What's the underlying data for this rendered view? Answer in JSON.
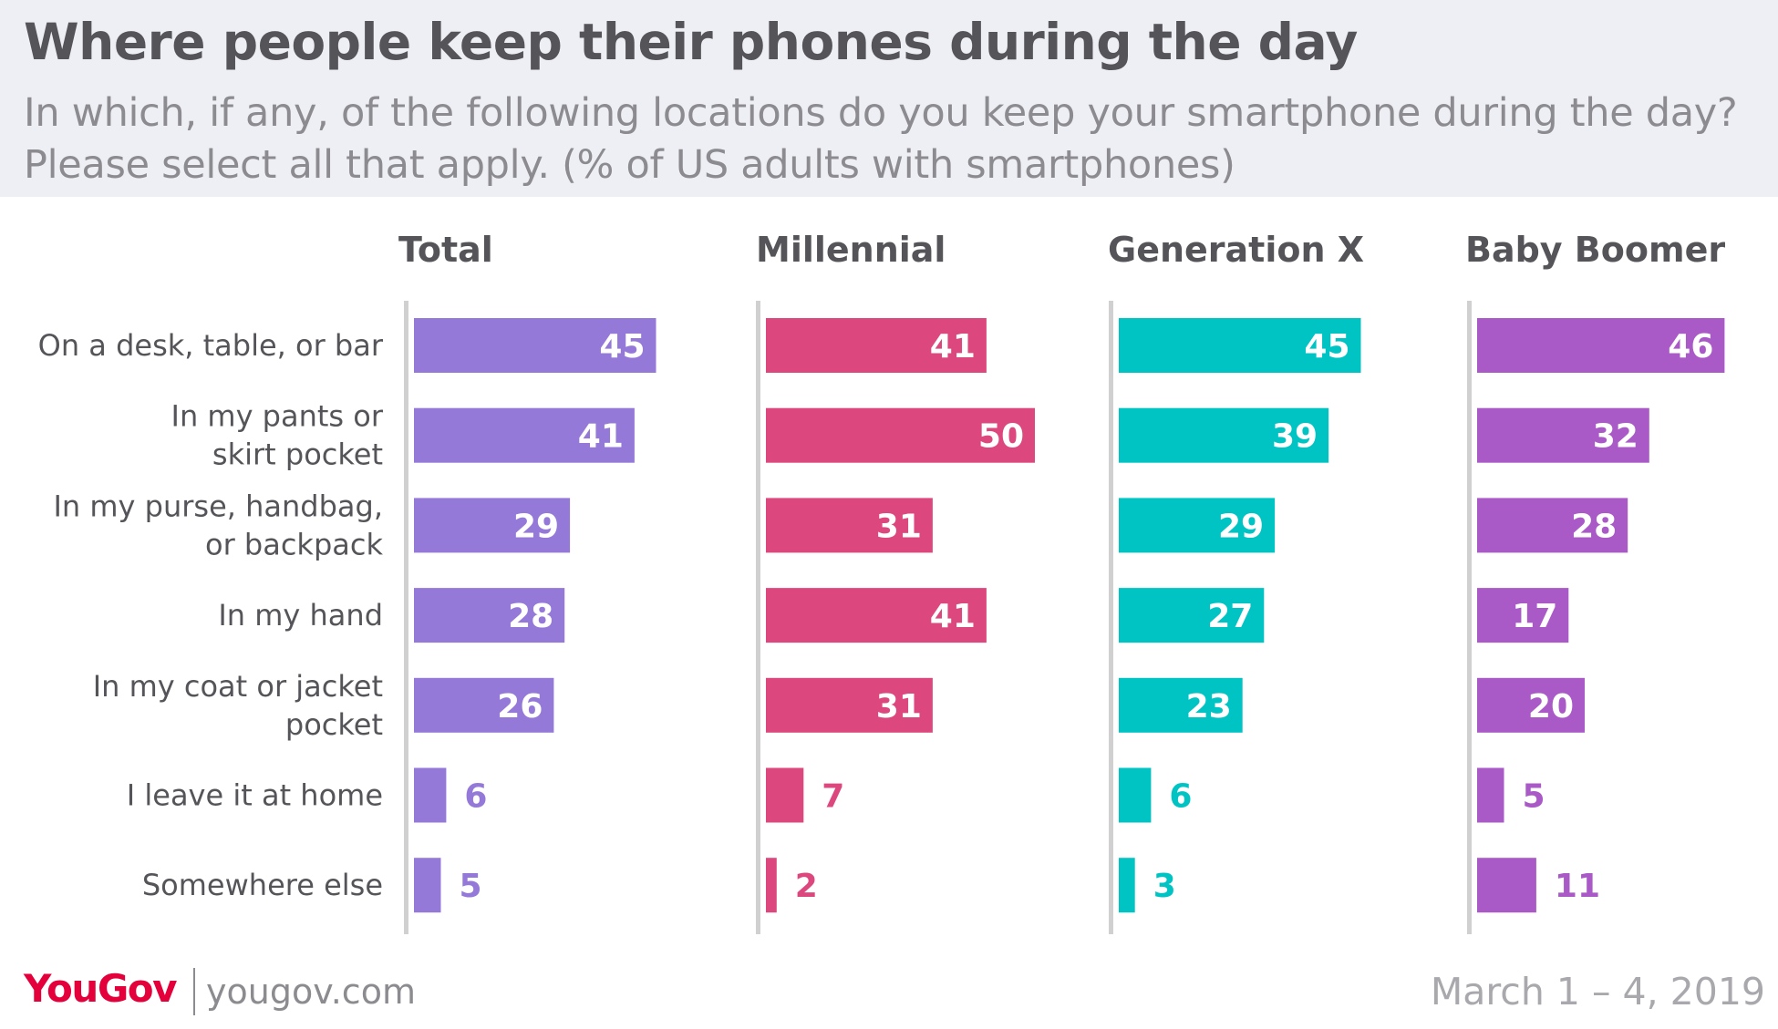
{
  "title": "Where people keep their phones during the day",
  "subtitle_line1": "In which, if any, of the following locations do you keep your smartphone during the day?",
  "subtitle_line2": "Please select all that apply. (% of US adults with smartphones)",
  "footer": {
    "brand": "YouGov",
    "site": "yougov.com",
    "date": "March 1 – 4, 2019"
  },
  "colors": {
    "Total": "#9479d8",
    "Millennial": "#dc487d",
    "Generation X": "#00c4c4",
    "Baby Boomer": "#a95ac7",
    "axis": "#d0d0d0"
  },
  "chart_data": {
    "type": "bar",
    "orientation": "horizontal",
    "layout": "small-multiples",
    "categories": [
      [
        "On a desk, table, or bar"
      ],
      [
        "In my pants or",
        "skirt pocket"
      ],
      [
        "In my purse, handbag,",
        "or backpack"
      ],
      [
        "In my hand"
      ],
      [
        "In my coat or jacket",
        "pocket"
      ],
      [
        "I leave it at home"
      ],
      [
        "Somewhere else"
      ]
    ],
    "series": [
      {
        "name": "Total",
        "values": [
          45,
          41,
          29,
          28,
          26,
          6,
          5
        ]
      },
      {
        "name": "Millennial",
        "values": [
          41,
          50,
          31,
          41,
          31,
          7,
          2
        ]
      },
      {
        "name": "Generation X",
        "values": [
          45,
          39,
          29,
          27,
          23,
          6,
          3
        ]
      },
      {
        "name": "Baby Boomer",
        "values": [
          46,
          32,
          28,
          17,
          20,
          5,
          11
        ]
      }
    ],
    "xlim": [
      0,
      50
    ],
    "grid": false,
    "legend": "none",
    "data_labels": true
  }
}
